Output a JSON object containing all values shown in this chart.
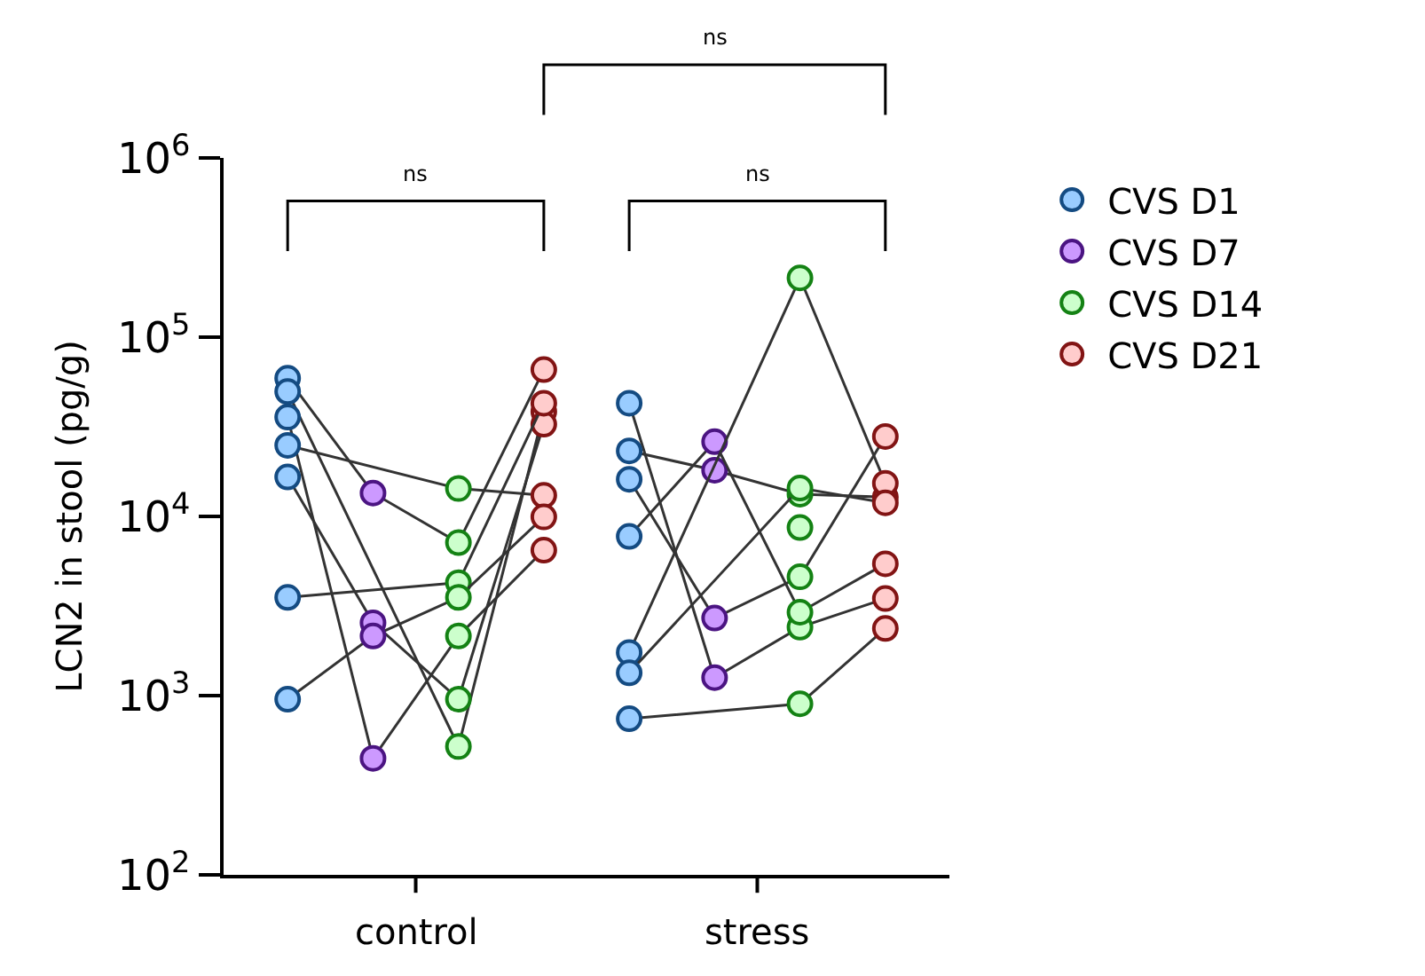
{
  "chart_data": {
    "type": "line",
    "ylabel": "LCN2 in stool (pg/g)",
    "log": "y",
    "ylim": [
      100,
      1000000
    ],
    "yticks": [
      {
        "value": 100,
        "label": "10$^{2}$"
      },
      {
        "value": 1000,
        "label": "10$^{3}$"
      },
      {
        "value": 10000,
        "label": "10$^{4}$"
      },
      {
        "value": 100000,
        "label": "10$^{5}$"
      },
      {
        "value": 1000000,
        "label": "10$^{6}$"
      }
    ],
    "categories": [
      null,
      null,
      null,
      null,
      null,
      null,
      null,
      null
    ],
    "legend": "right",
    "marker": "circle",
    "annotations": [
      "ns",
      "ns",
      "ns",
      "control",
      "stress"
    ],
    "series": [
      {
        "color": "#333333",
        "colors": [
          "#99ccff",
          "#cc99ff",
          "#ccffcc",
          "#ffcccc",
          null,
          null,
          null,
          null
        ],
        "values": [
          59000,
          13500,
          7140,
          65900,
          null,
          null,
          null,
          null
        ]
      },
      {
        "color": "#333333",
        "colors": [
          "#99ccff",
          null,
          "#ccffcc",
          "#ffcccc",
          null,
          null,
          null,
          null
        ],
        "values": [
          49700,
          null,
          520,
          38400,
          null,
          null,
          null,
          null
        ]
      },
      {
        "color": "#333333",
        "colors": [
          "#99ccff",
          "#cc99ff",
          "#ccffcc",
          "#ffcccc",
          null,
          null,
          null,
          null
        ],
        "values": [
          35800,
          447,
          2150,
          6480,
          null,
          null,
          null,
          null
        ]
      },
      {
        "color": "#333333",
        "colors": [
          "#99ccff",
          null,
          "#ccffcc",
          "#ffcccc",
          null,
          null,
          null,
          null
        ],
        "values": [
          24900,
          null,
          14300,
          13100,
          null,
          null,
          null,
          null
        ]
      },
      {
        "color": "#333333",
        "colors": [
          "#99ccff",
          "#cc99ff",
          "#ccffcc",
          "#ffcccc",
          null,
          null,
          null,
          null
        ],
        "values": [
          16600,
          2550,
          955,
          32700,
          null,
          null,
          null,
          null
        ]
      },
      {
        "color": "#333333",
        "colors": [
          "#99ccff",
          null,
          "#ccffcc",
          "#ffcccc",
          null,
          null,
          null,
          null
        ],
        "values": [
          3530,
          null,
          4270,
          42800,
          null,
          null,
          null,
          null
        ]
      },
      {
        "color": "#333333",
        "colors": [
          "#99ccff",
          "#cc99ff",
          "#ccffcc",
          "#ffcccc",
          null,
          null,
          null,
          null
        ],
        "values": [
          955,
          2150,
          3530,
          9930,
          null,
          null,
          null,
          null
        ]
      },
      {
        "color": "#333333",
        "colors": [
          null,
          null,
          null,
          null,
          "#99ccff",
          "#cc99ff",
          "#ccffcc",
          "#ffcccc"
        ],
        "values": [
          null,
          null,
          null,
          null,
          42800,
          1260,
          2410,
          3480
        ]
      },
      {
        "color": "#333333",
        "colors": [
          null,
          null,
          null,
          null,
          "#99ccff",
          "#cc99ff",
          "#ccffcc",
          "#ffcccc"
        ],
        "values": [
          null,
          null,
          null,
          null,
          16100,
          2710,
          4600,
          27900
        ]
      },
      {
        "color": "#333333",
        "colors": [
          null,
          null,
          null,
          null,
          "#99ccff",
          "#cc99ff",
          "#ccffcc",
          "#ffcccc"
        ],
        "values": [
          null,
          null,
          null,
          null,
          23200,
          18100,
          13300,
          12800
        ]
      },
      {
        "color": "#333333",
        "colors": [
          null,
          null,
          null,
          null,
          "#99ccff",
          "#cc99ff",
          "#ccffcc",
          "#ffcccc"
        ],
        "values": [
          null,
          null,
          null,
          null,
          7730,
          26100,
          2920,
          5440
        ]
      },
      {
        "color": "#333333",
        "colors": [
          null,
          null,
          null,
          null,
          "#99ccff",
          null,
          "#ccffcc",
          "#ffcccc"
        ],
        "values": [
          null,
          null,
          null,
          null,
          1740,
          null,
          214000,
          15300
        ]
      },
      {
        "color": "#333333",
        "colors": [
          null,
          null,
          null,
          null,
          "#99ccff",
          null,
          "#ccffcc",
          "#ffcccc"
        ],
        "values": [
          null,
          null,
          null,
          null,
          1340,
          null,
          14400,
          11900
        ]
      },
      {
        "color": "#333333",
        "colors": [
          null,
          null,
          null,
          null,
          "#99ccff",
          null,
          "#ccffcc",
          "#ffcccc"
        ],
        "values": [
          null,
          null,
          null,
          null,
          743,
          null,
          900,
          2370
        ]
      },
      {
        "color": "#333333",
        "colors": [
          null,
          null,
          null,
          null,
          null,
          null,
          "#ccffcc",
          null
        ],
        "values": [
          null,
          null,
          null,
          null,
          null,
          null,
          8670,
          null
        ]
      },
      {
        "name": "CVS D1",
        "color": "#99ccff",
        "values": [
          null,
          null,
          null,
          null,
          null,
          null,
          null,
          null
        ]
      },
      {
        "name": "CVS D7",
        "color": "#cc99ff",
        "values": [
          null,
          null,
          null,
          null,
          null,
          null,
          null,
          null
        ]
      },
      {
        "name": "CVS D14",
        "color": "#ccffcc",
        "values": [
          null,
          null,
          null,
          null,
          null,
          null,
          null,
          null
        ]
      },
      {
        "name": "CVS D21",
        "color": "#ffcccc",
        "values": [
          null,
          null,
          null,
          null,
          null,
          null,
          null,
          null
        ]
      }
    ]
  }
}
